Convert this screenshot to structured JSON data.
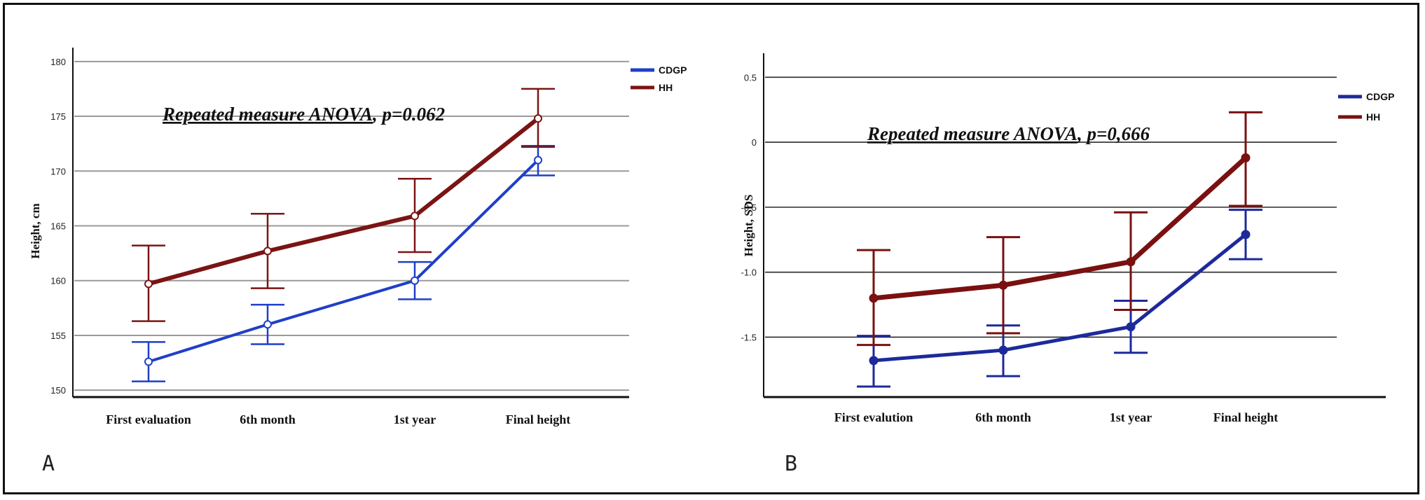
{
  "colors": {
    "CDGP": "#1f3fc8",
    "HH": "#7b1414",
    "CDGP_B": "#1c2a9a",
    "HH_B": "#7a1010"
  },
  "chart_data": [
    {
      "type": "line",
      "panel_label": "A",
      "ylabel": "Height, cm",
      "categories": [
        "First evaluation",
        "6th month",
        "1st year",
        "Final height"
      ],
      "ylim": [
        149.5,
        180.5
      ],
      "yticks": [
        150,
        155,
        160,
        165,
        170,
        175,
        180
      ],
      "grid": true,
      "legend_position": "top-right",
      "annotation": {
        "prefix": "Repeated measure ANOVA",
        "suffix": ", p=0.062"
      },
      "series": [
        {
          "name": "CDGP",
          "values": [
            152.6,
            156.0,
            160.0,
            171.0
          ],
          "error_low": [
            150.8,
            154.2,
            158.3,
            169.6
          ],
          "error_high": [
            154.4,
            157.8,
            161.7,
            172.3
          ]
        },
        {
          "name": "HH",
          "values": [
            159.7,
            162.7,
            165.9,
            174.8
          ],
          "error_low": [
            156.3,
            159.3,
            162.6,
            172.2
          ],
          "error_high": [
            163.2,
            166.1,
            169.3,
            177.5
          ]
        }
      ]
    },
    {
      "type": "line",
      "panel_label": "B",
      "ylabel": "Height, SDS",
      "categories": [
        "First evalution",
        "6th month",
        "1st year",
        "Final height"
      ],
      "ylim": [
        -1.95,
        0.62
      ],
      "yticks": [
        0.5,
        0,
        -0.5,
        -1.0,
        -1.5
      ],
      "ytick_labels": [
        "0.5",
        "0",
        "-0.5",
        "-1.0",
        "-1.5"
      ],
      "grid": true,
      "legend_position": "top-right",
      "annotation": {
        "prefix": "Repeated measure ANOVA",
        "suffix": ", p=0,666"
      },
      "series": [
        {
          "name": "CDGP",
          "values": [
            -1.68,
            -1.6,
            -1.42,
            -0.71
          ],
          "error_low": [
            -1.88,
            -1.8,
            -1.62,
            -0.9
          ],
          "error_high": [
            -1.49,
            -1.41,
            -1.22,
            -0.52
          ]
        },
        {
          "name": "HH",
          "values": [
            -1.2,
            -1.1,
            -0.92,
            -0.12
          ],
          "error_low": [
            -1.56,
            -1.47,
            -1.29,
            -0.49
          ],
          "error_high": [
            -0.83,
            -0.73,
            -0.54,
            0.23
          ]
        }
      ]
    }
  ]
}
